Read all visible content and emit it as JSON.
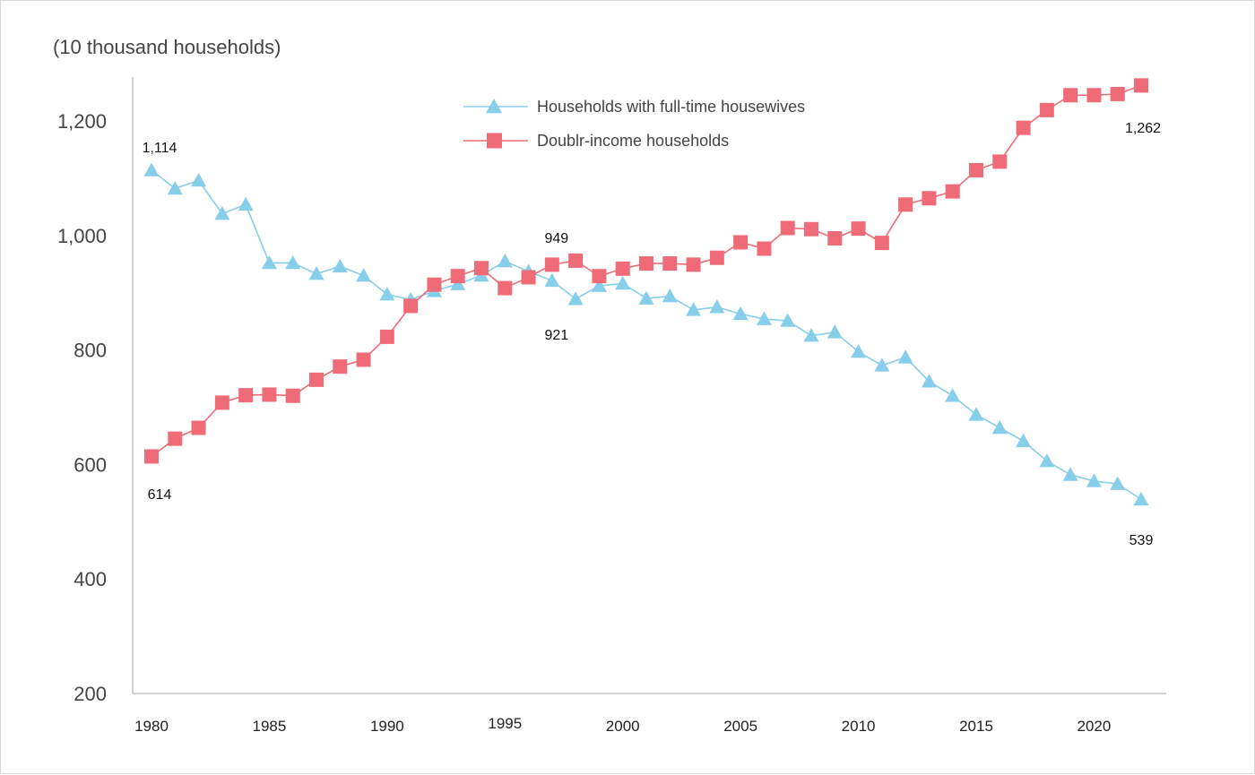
{
  "chart_data": {
    "type": "line",
    "unit_label": "(10 thousand households)",
    "x": [
      1980,
      1981,
      1982,
      1983,
      1984,
      1985,
      1986,
      1987,
      1988,
      1989,
      1990,
      1991,
      1992,
      1993,
      1994,
      1995,
      1996,
      1997,
      1998,
      1999,
      2000,
      2001,
      2002,
      2003,
      2004,
      2005,
      2006,
      2007,
      2008,
      2009,
      2010,
      2011,
      2012,
      2013,
      2014,
      2015,
      2016,
      2017,
      2018,
      2019,
      2020,
      2021,
      2022
    ],
    "x_ticks": [
      "1980",
      "1985",
      "1990",
      "1995",
      "2000",
      "2005",
      "2010",
      "2015",
      "2020"
    ],
    "x_tick_values": [
      1980,
      1985,
      1990,
      1995,
      2000,
      2005,
      2010,
      2015,
      2020
    ],
    "y_ticks": [
      "200",
      "400",
      "600",
      "800",
      "1,000",
      "1,200"
    ],
    "y_tick_values": [
      200,
      400,
      600,
      800,
      1000,
      1200
    ],
    "ylim": [
      200,
      1300
    ],
    "legend_position": "top-center",
    "series": [
      {
        "name": "Households with full-time housewives",
        "color": "#87ceeb",
        "marker": "triangle",
        "values": [
          1114,
          1082,
          1096,
          1038,
          1054,
          952,
          952,
          933,
          946,
          930,
          897,
          888,
          903,
          915,
          930,
          955,
          937,
          921,
          889,
          912,
          916,
          890,
          894,
          870,
          875,
          863,
          854,
          851,
          825,
          831,
          797,
          773,
          787,
          745,
          720,
          687,
          664,
          641,
          606,
          582,
          571,
          566,
          539
        ]
      },
      {
        "name": "Doublr-income households",
        "color": "#ee6b77",
        "marker": "square",
        "values": [
          614,
          645,
          664,
          708,
          721,
          722,
          720,
          748,
          771,
          783,
          823,
          877,
          914,
          929,
          943,
          908,
          927,
          949,
          956,
          929,
          942,
          951,
          951,
          949,
          961,
          988,
          977,
          1013,
          1011,
          995,
          1012,
          987,
          1054,
          1065,
          1077,
          1114,
          1129,
          1188,
          1219,
          1245,
          1245,
          1247,
          1262
        ]
      }
    ],
    "annotations": [
      {
        "text": "1,114",
        "series": 0,
        "x": 1980,
        "pos": "above"
      },
      {
        "text": "614",
        "series": 1,
        "x": 1980,
        "pos": "below"
      },
      {
        "text": "949",
        "series": 1,
        "x": 1997,
        "pos": "above"
      },
      {
        "text": "921",
        "series": 0,
        "x": 1997,
        "pos": "below"
      },
      {
        "text": "1,262",
        "series": 1,
        "x": 2022,
        "pos": "below"
      },
      {
        "text": "539",
        "series": 0,
        "x": 2022,
        "pos": "below"
      }
    ]
  }
}
